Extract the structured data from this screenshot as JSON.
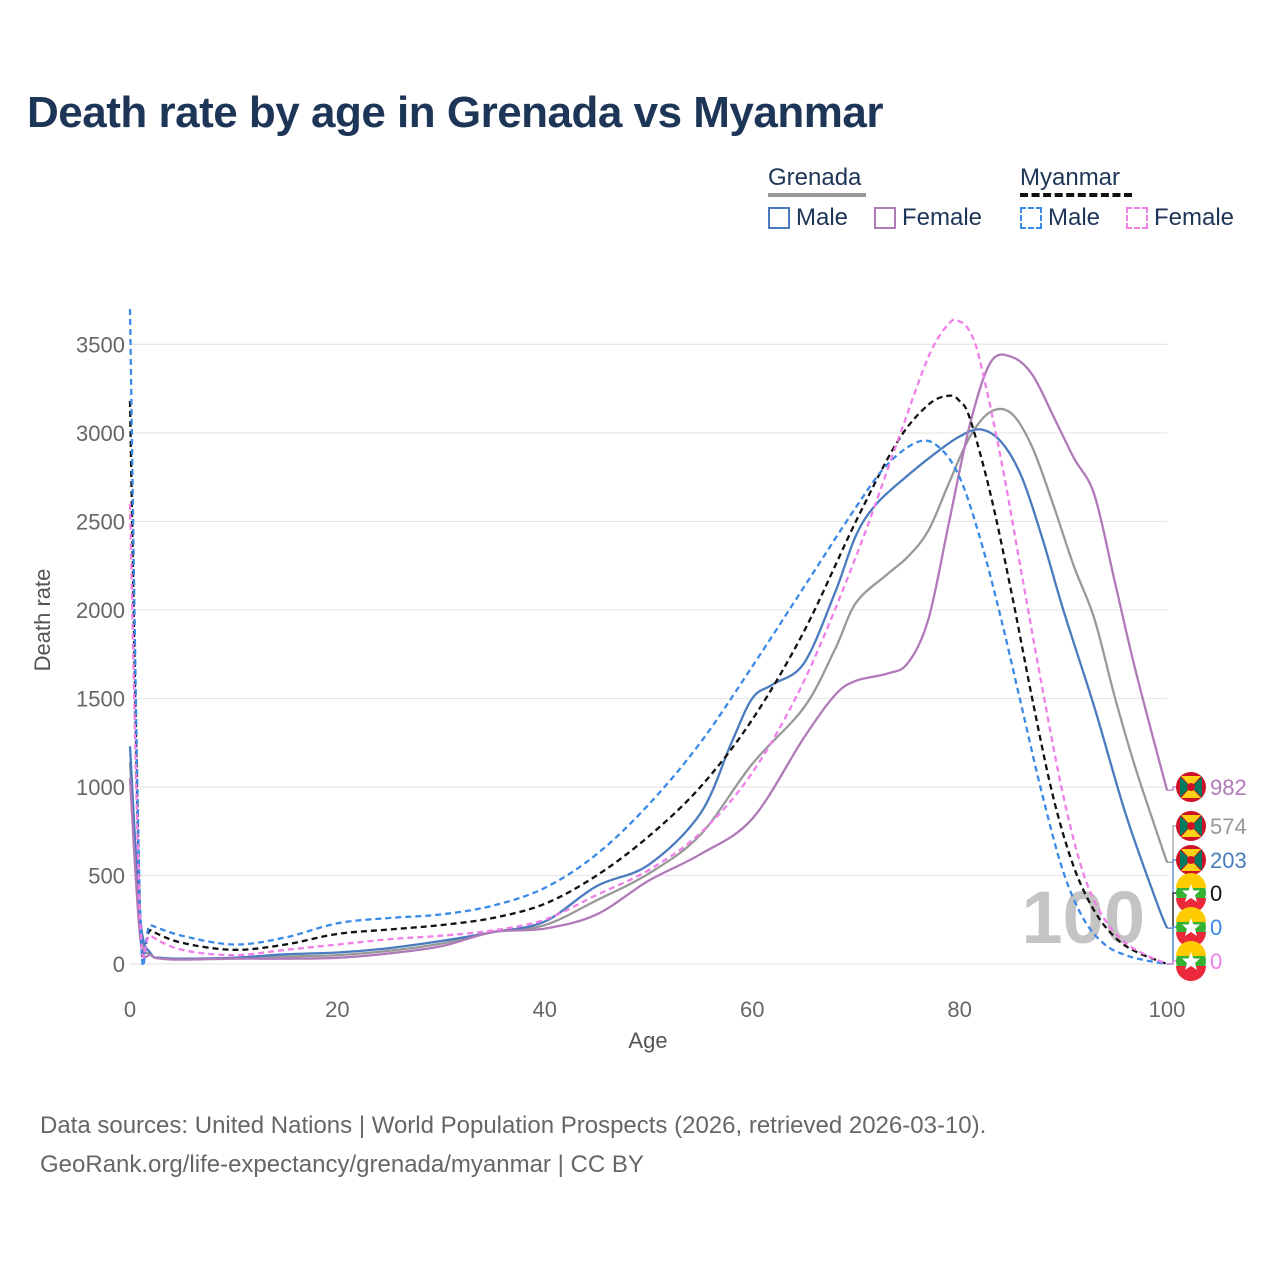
{
  "title": "Death rate by age in Grenada vs Myanmar",
  "legend": {
    "groups": [
      {
        "name": "Grenada",
        "line_style": "solid",
        "line_color": "#999999",
        "items": [
          {
            "label": "Male",
            "color": "#4a7bbf"
          },
          {
            "label": "Female",
            "color": "#b07ab8"
          }
        ]
      },
      {
        "name": "Myanmar",
        "line_style": "dashed",
        "line_color": "#111111",
        "items": [
          {
            "label": "Male",
            "color": "#3a8ae8"
          },
          {
            "label": "Female",
            "color": "#f07fe8"
          }
        ]
      }
    ]
  },
  "footer": {
    "line1": "Data sources: United Nations | World Population Prospects (2026, retrieved 2026-03-10).",
    "line2": "GeoRank.org/life-expectancy/grenada/myanmar | CC BY"
  },
  "chart_data": {
    "type": "line",
    "title": "Death rate by age in Grenada vs Myanmar",
    "xlabel": "Age",
    "ylabel": "Death rate",
    "xlim": [
      0,
      100
    ],
    "ylim": [
      0,
      3700
    ],
    "xticks": [
      0,
      20,
      40,
      60,
      80,
      100
    ],
    "yticks": [
      0,
      500,
      1000,
      1500,
      2000,
      2500,
      3000,
      3500
    ],
    "grid": "horizontal",
    "watermark": "100",
    "series": [
      {
        "name": "Grenada Male",
        "country": "Grenada",
        "sex": "Male",
        "color": "#4a7bbf",
        "dash": "solid",
        "end_label": "203",
        "x": [
          0,
          1,
          2,
          3,
          5,
          10,
          15,
          20,
          25,
          30,
          35,
          40,
          45,
          50,
          55,
          58,
          60,
          62,
          65,
          68,
          70,
          72,
          75,
          78,
          80,
          82,
          84,
          86,
          88,
          90,
          93,
          96,
          99,
          100
        ],
        "y": [
          1230,
          250,
          60,
          35,
          30,
          35,
          55,
          65,
          90,
          130,
          180,
          240,
          440,
          560,
          850,
          1250,
          1500,
          1580,
          1700,
          2100,
          2420,
          2600,
          2760,
          2900,
          2980,
          3020,
          2950,
          2750,
          2400,
          2000,
          1450,
          850,
          350,
          203
        ]
      },
      {
        "name": "Grenada Female",
        "country": "Grenada",
        "sex": "Female",
        "color": "#b07ab8",
        "dash": "solid",
        "end_label": "982",
        "x": [
          0,
          1,
          2,
          3,
          5,
          10,
          15,
          20,
          25,
          30,
          35,
          40,
          45,
          50,
          55,
          60,
          65,
          68,
          70,
          73,
          75,
          77,
          79,
          81,
          83,
          85,
          87,
          89,
          91,
          93,
          95,
          97,
          100
        ],
        "y": [
          1050,
          140,
          50,
          30,
          25,
          30,
          30,
          35,
          60,
          100,
          180,
          200,
          280,
          470,
          620,
          820,
          1280,
          1520,
          1600,
          1640,
          1700,
          1950,
          2500,
          3050,
          3400,
          3430,
          3330,
          3100,
          2860,
          2650,
          2150,
          1650,
          982
        ]
      },
      {
        "name": "Grenada Total",
        "country": "Grenada",
        "sex": "Total",
        "color": "#999999",
        "dash": "solid",
        "end_label": "574",
        "x": [
          0,
          1,
          2,
          3,
          5,
          10,
          15,
          20,
          25,
          30,
          35,
          40,
          45,
          50,
          55,
          60,
          65,
          68,
          70,
          73,
          75,
          77,
          79,
          81,
          83,
          85,
          87,
          89,
          91,
          93,
          95,
          97,
          100
        ],
        "y": [
          1140,
          190,
          55,
          32,
          28,
          33,
          42,
          50,
          75,
          115,
          180,
          220,
          360,
          510,
          730,
          1130,
          1450,
          1780,
          2040,
          2200,
          2300,
          2450,
          2720,
          2980,
          3120,
          3110,
          2920,
          2600,
          2250,
          1950,
          1500,
          1100,
          574
        ]
      },
      {
        "name": "Myanmar Male",
        "country": "Myanmar",
        "sex": "Male",
        "color": "#3a8ae8",
        "dash": "dashed",
        "end_label": "0",
        "x": [
          0,
          1,
          2,
          5,
          10,
          15,
          20,
          25,
          30,
          35,
          40,
          45,
          50,
          55,
          60,
          65,
          70,
          73,
          76,
          78,
          80,
          82,
          84,
          86,
          88,
          90,
          92,
          94,
          96,
          98,
          100
        ],
        "y": [
          3700,
          250,
          220,
          160,
          110,
          150,
          230,
          260,
          280,
          330,
          430,
          620,
          900,
          1250,
          1680,
          2130,
          2580,
          2820,
          2950,
          2920,
          2750,
          2400,
          1950,
          1450,
          950,
          520,
          250,
          110,
          50,
          20,
          0
        ]
      },
      {
        "name": "Myanmar Female",
        "country": "Myanmar",
        "sex": "Female",
        "color": "#f07fe8",
        "dash": "dashed",
        "end_label": "0",
        "x": [
          0,
          1,
          2,
          5,
          10,
          15,
          20,
          25,
          30,
          35,
          40,
          45,
          50,
          55,
          60,
          65,
          70,
          74,
          77,
          79,
          80,
          81,
          82,
          84,
          86,
          88,
          90,
          92,
          94,
          96,
          98,
          100
        ],
        "y": [
          2600,
          230,
          160,
          80,
          50,
          80,
          110,
          140,
          160,
          190,
          250,
          390,
          530,
          740,
          1080,
          1600,
          2300,
          2950,
          3430,
          3620,
          3630,
          3570,
          3400,
          2850,
          2200,
          1550,
          950,
          500,
          250,
          120,
          50,
          0
        ]
      },
      {
        "name": "Myanmar Total",
        "country": "Myanmar",
        "sex": "Total",
        "color": "#111111",
        "dash": "dashed",
        "end_label": "0",
        "x": [
          0,
          1,
          2,
          5,
          10,
          15,
          20,
          25,
          30,
          35,
          40,
          45,
          50,
          55,
          60,
          65,
          70,
          74,
          77,
          79,
          80,
          81,
          83,
          85,
          87,
          89,
          91,
          93,
          95,
          97,
          100
        ],
        "y": [
          3180,
          240,
          190,
          120,
          80,
          110,
          170,
          195,
          220,
          260,
          340,
          500,
          720,
          1000,
          1380,
          1880,
          2500,
          2950,
          3160,
          3210,
          3180,
          3080,
          2650,
          2100,
          1500,
          950,
          550,
          300,
          150,
          70,
          0
        ]
      }
    ]
  }
}
